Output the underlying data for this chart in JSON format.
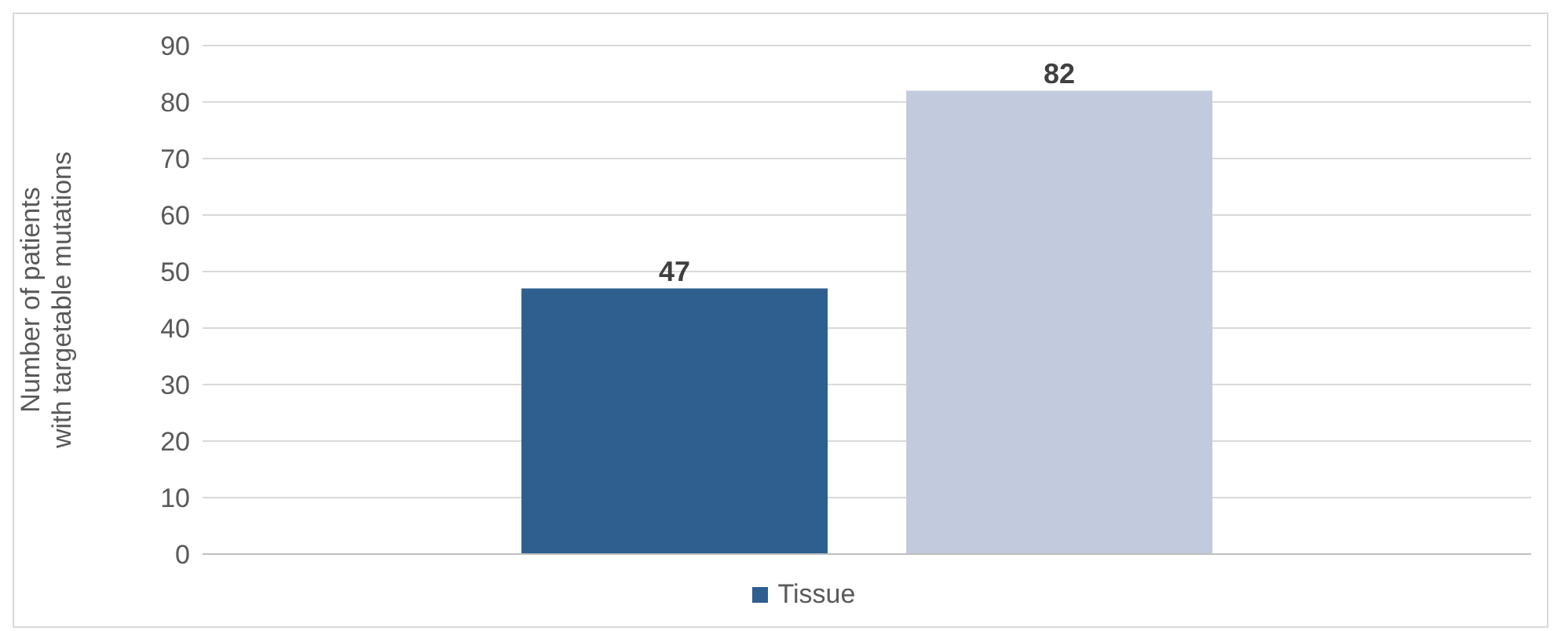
{
  "chart_data": {
    "type": "bar",
    "ylabel": "Number of patients with targetable mutations",
    "categories": [
      null
    ],
    "series": [
      {
        "name": "Tissue",
        "color": "#2e5f8f",
        "values": [
          47
        ]
      },
      {
        "color": "#c2cbdd",
        "values": [
          82
        ]
      }
    ],
    "ylim": [
      0,
      90
    ],
    "yticks": [
      0,
      10,
      20,
      30,
      40,
      50,
      60,
      70,
      80,
      90
    ],
    "grid": "y",
    "legend": "bottom",
    "data_labels": true
  }
}
